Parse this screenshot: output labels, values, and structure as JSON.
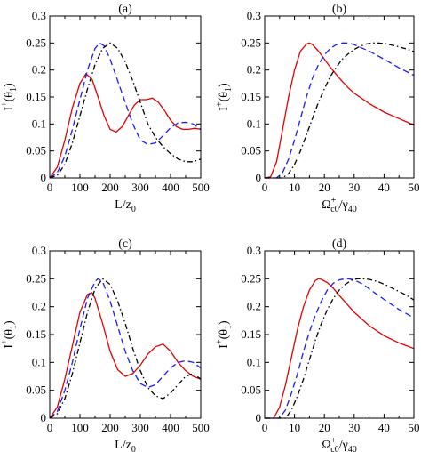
{
  "chart_data": [
    {
      "type": "line",
      "panel_label": "(a)",
      "xlabel": {
        "base": "L/z",
        "sub": "0"
      },
      "ylabel": {
        "main": "I",
        "sup": "+",
        "arg": "(θ",
        "argsub": "1",
        "close": ")"
      },
      "xlim": [
        0,
        500
      ],
      "ylim": [
        0,
        0.3
      ],
      "xticks": [
        "0",
        "100",
        "200",
        "300",
        "400",
        "500"
      ],
      "yticks": [
        "0",
        "0.05",
        "0.1",
        "0.15",
        "0.2",
        "0.25",
        "0.3"
      ],
      "series": [
        {
          "style": "solid",
          "color": "#e00000",
          "x": [
            0,
            25,
            50,
            75,
            100,
            120,
            140,
            160,
            180,
            200,
            220,
            240,
            260,
            280,
            300,
            320,
            340,
            360,
            380,
            400,
            420,
            440,
            460,
            480,
            500
          ],
          "y": [
            0,
            0.02,
            0.07,
            0.13,
            0.175,
            0.193,
            0.183,
            0.15,
            0.115,
            0.09,
            0.085,
            0.095,
            0.115,
            0.135,
            0.145,
            0.145,
            0.148,
            0.14,
            0.125,
            0.107,
            0.095,
            0.09,
            0.09,
            0.092,
            0.09
          ]
        },
        {
          "style": "dashed",
          "color": "#1a1aff",
          "x": [
            0,
            25,
            50,
            75,
            100,
            125,
            150,
            165,
            180,
            200,
            225,
            250,
            275,
            300,
            325,
            350,
            375,
            400,
            425,
            450,
            475,
            500
          ],
          "y": [
            0,
            0.01,
            0.04,
            0.09,
            0.145,
            0.2,
            0.24,
            0.25,
            0.245,
            0.22,
            0.18,
            0.14,
            0.1,
            0.07,
            0.062,
            0.065,
            0.078,
            0.093,
            0.102,
            0.103,
            0.1,
            0.09
          ]
        },
        {
          "style": "dashdot",
          "color": "#000000",
          "x": [
            0,
            25,
            50,
            75,
            100,
            125,
            150,
            175,
            200,
            225,
            250,
            275,
            300,
            325,
            350,
            375,
            400,
            425,
            450,
            475,
            500
          ],
          "y": [
            0,
            0.005,
            0.025,
            0.065,
            0.115,
            0.165,
            0.21,
            0.24,
            0.25,
            0.24,
            0.215,
            0.18,
            0.14,
            0.1,
            0.075,
            0.058,
            0.045,
            0.035,
            0.03,
            0.03,
            0.035
          ]
        }
      ]
    },
    {
      "type": "line",
      "panel_label": "(b)",
      "xlabel": {
        "base": "Ω",
        "sup": "+",
        "sub": "c0",
        "tail": "/γ",
        "tailsub": "40"
      },
      "ylabel": {
        "main": "I",
        "sup": "+",
        "arg": "(θ",
        "argsub": "1",
        "close": ")"
      },
      "xlim": [
        0,
        50
      ],
      "ylim": [
        0,
        0.3
      ],
      "xticks": [
        "0",
        "10",
        "20",
        "30",
        "40",
        "50"
      ],
      "yticks": [
        "0",
        "0.05",
        "0.1",
        "0.15",
        "0.2",
        "0.25",
        "0.3"
      ],
      "series": [
        {
          "style": "solid",
          "color": "#e00000",
          "x": [
            0,
            2,
            4,
            6,
            8,
            10,
            12,
            14,
            15,
            16,
            18,
            20,
            22,
            25,
            28,
            30,
            35,
            40,
            45,
            50
          ],
          "y": [
            0,
            0.002,
            0.03,
            0.09,
            0.15,
            0.2,
            0.235,
            0.248,
            0.25,
            0.247,
            0.235,
            0.22,
            0.205,
            0.185,
            0.167,
            0.157,
            0.138,
            0.122,
            0.11,
            0.098
          ]
        },
        {
          "style": "dashed",
          "color": "#1a1aff",
          "x": [
            0,
            4,
            6,
            8,
            10,
            12,
            14,
            16,
            18,
            20,
            22,
            24,
            26,
            28,
            30,
            32,
            35,
            40,
            45,
            50
          ],
          "y": [
            0,
            0.0,
            0.01,
            0.035,
            0.07,
            0.11,
            0.15,
            0.185,
            0.21,
            0.228,
            0.24,
            0.247,
            0.25,
            0.25,
            0.247,
            0.242,
            0.235,
            0.22,
            0.204,
            0.19
          ]
        },
        {
          "style": "dashdot",
          "color": "#000000",
          "x": [
            0,
            6,
            8,
            10,
            12,
            14,
            16,
            18,
            20,
            22,
            24,
            26,
            28,
            30,
            32,
            34,
            36,
            38,
            40,
            42,
            45,
            48,
            50
          ],
          "y": [
            0,
            0.0,
            0.008,
            0.025,
            0.05,
            0.08,
            0.11,
            0.14,
            0.165,
            0.188,
            0.205,
            0.22,
            0.23,
            0.238,
            0.244,
            0.248,
            0.25,
            0.25,
            0.249,
            0.247,
            0.243,
            0.238,
            0.234
          ]
        }
      ]
    },
    {
      "type": "line",
      "panel_label": "(c)",
      "xlabel": {
        "base": "L/z",
        "sub": "0"
      },
      "ylabel": {
        "main": "I",
        "sup": "+",
        "arg": "(θ",
        "argsub": "1",
        "close": ")"
      },
      "xlim": [
        0,
        500
      ],
      "ylim": [
        0,
        0.3
      ],
      "xticks": [
        "0",
        "100",
        "200",
        "300",
        "400",
        "500"
      ],
      "yticks": [
        "0",
        "0.05",
        "0.1",
        "0.15",
        "0.2",
        "0.25",
        "0.3"
      ],
      "series": [
        {
          "style": "solid",
          "color": "#e00000",
          "x": [
            0,
            25,
            50,
            75,
            100,
            125,
            140,
            150,
            175,
            200,
            225,
            250,
            275,
            300,
            325,
            350,
            375,
            400,
            425,
            450,
            475,
            500
          ],
          "y": [
            0,
            0.02,
            0.07,
            0.13,
            0.19,
            0.222,
            0.225,
            0.215,
            0.17,
            0.12,
            0.087,
            0.075,
            0.08,
            0.095,
            0.115,
            0.128,
            0.133,
            0.12,
            0.1,
            0.085,
            0.075,
            0.07
          ]
        },
        {
          "style": "dashed",
          "color": "#1a1aff",
          "x": [
            0,
            25,
            50,
            75,
            100,
            125,
            150,
            160,
            175,
            200,
            225,
            250,
            275,
            300,
            325,
            350,
            375,
            400,
            425,
            450,
            475,
            500
          ],
          "y": [
            0,
            0.012,
            0.05,
            0.1,
            0.16,
            0.215,
            0.245,
            0.25,
            0.245,
            0.21,
            0.165,
            0.12,
            0.085,
            0.062,
            0.055,
            0.06,
            0.075,
            0.09,
            0.1,
            0.103,
            0.1,
            0.09
          ]
        },
        {
          "style": "dashdot",
          "color": "#000000",
          "x": [
            0,
            25,
            50,
            75,
            100,
            125,
            150,
            175,
            200,
            225,
            250,
            275,
            300,
            325,
            350,
            375,
            400,
            425,
            450,
            475,
            500
          ],
          "y": [
            0,
            0.008,
            0.035,
            0.08,
            0.135,
            0.19,
            0.232,
            0.25,
            0.24,
            0.21,
            0.17,
            0.125,
            0.085,
            0.055,
            0.04,
            0.035,
            0.045,
            0.06,
            0.075,
            0.08,
            0.07
          ]
        }
      ]
    },
    {
      "type": "line",
      "panel_label": "(d)",
      "xlabel": {
        "base": "Ω",
        "sup": "+",
        "sub": "c0",
        "tail": "/γ",
        "tailsub": "40"
      },
      "ylabel": {
        "main": "I",
        "sup": "+",
        "arg": "(θ",
        "argsub": "1",
        "close": ")"
      },
      "xlim": [
        0,
        50
      ],
      "ylim": [
        0,
        0.3
      ],
      "xticks": [
        "0",
        "10",
        "20",
        "30",
        "40",
        "50"
      ],
      "yticks": [
        "0",
        "0.05",
        "0.1",
        "0.15",
        "0.2",
        "0.25",
        "0.3"
      ],
      "series": [
        {
          "style": "solid",
          "color": "#e00000",
          "x": [
            0,
            3,
            5,
            7,
            9,
            11,
            13,
            15,
            17,
            18,
            19,
            21,
            23,
            25,
            28,
            30,
            35,
            40,
            45,
            50
          ],
          "y": [
            0,
            0.0,
            0.02,
            0.06,
            0.11,
            0.16,
            0.2,
            0.23,
            0.247,
            0.25,
            0.249,
            0.243,
            0.233,
            0.22,
            0.202,
            0.19,
            0.166,
            0.148,
            0.135,
            0.125
          ]
        },
        {
          "style": "dashed",
          "color": "#1a1aff",
          "x": [
            0,
            5,
            7,
            9,
            11,
            13,
            15,
            17,
            19,
            21,
            23,
            25,
            27,
            28,
            30,
            33,
            36,
            40,
            45,
            50
          ],
          "y": [
            0,
            0.0,
            0.015,
            0.045,
            0.08,
            0.12,
            0.155,
            0.185,
            0.21,
            0.23,
            0.242,
            0.248,
            0.25,
            0.25,
            0.248,
            0.24,
            0.228,
            0.213,
            0.195,
            0.18
          ]
        },
        {
          "style": "dashdot",
          "color": "#000000",
          "x": [
            0,
            7,
            9,
            11,
            13,
            15,
            17,
            19,
            21,
            23,
            25,
            27,
            29,
            31,
            33,
            35,
            38,
            41,
            44,
            47,
            50
          ],
          "y": [
            0,
            0.0,
            0.015,
            0.04,
            0.07,
            0.105,
            0.14,
            0.17,
            0.195,
            0.215,
            0.23,
            0.24,
            0.247,
            0.25,
            0.25,
            0.249,
            0.245,
            0.238,
            0.23,
            0.222,
            0.212
          ]
        }
      ]
    }
  ]
}
